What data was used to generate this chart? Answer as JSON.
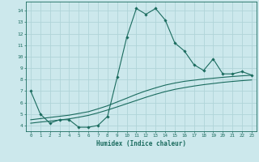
{
  "xlabel": "Humidex (Indice chaleur)",
  "bg_color": "#cce8ec",
  "line_color": "#1a6b5e",
  "grid_color": "#b0d4d8",
  "x_values": [
    0,
    1,
    2,
    3,
    4,
    5,
    6,
    7,
    8,
    9,
    10,
    11,
    12,
    13,
    14,
    15,
    16,
    17,
    18,
    19,
    20,
    21,
    22,
    23
  ],
  "line1_y": [
    7.0,
    5.0,
    4.2,
    4.5,
    4.5,
    3.85,
    3.85,
    4.0,
    4.8,
    8.2,
    11.7,
    14.2,
    13.7,
    14.2,
    13.2,
    11.2,
    10.5,
    9.3,
    8.8,
    9.8,
    8.5,
    8.5,
    8.7,
    8.4
  ],
  "line2_y": [
    4.5,
    4.6,
    4.7,
    4.8,
    4.9,
    5.05,
    5.2,
    5.45,
    5.72,
    6.05,
    6.38,
    6.72,
    7.02,
    7.28,
    7.52,
    7.7,
    7.85,
    7.95,
    8.05,
    8.12,
    8.2,
    8.27,
    8.33,
    8.38
  ],
  "line3_y": [
    4.2,
    4.3,
    4.38,
    4.48,
    4.58,
    4.72,
    4.88,
    5.1,
    5.35,
    5.62,
    5.9,
    6.18,
    6.46,
    6.72,
    6.95,
    7.15,
    7.3,
    7.44,
    7.56,
    7.66,
    7.76,
    7.84,
    7.91,
    7.97
  ],
  "xlim": [
    -0.5,
    23.5
  ],
  "ylim": [
    3.5,
    14.8
  ],
  "yticks": [
    4,
    5,
    6,
    7,
    8,
    9,
    10,
    11,
    12,
    13,
    14
  ],
  "xticks": [
    0,
    1,
    2,
    3,
    4,
    5,
    6,
    7,
    8,
    9,
    10,
    11,
    12,
    13,
    14,
    15,
    16,
    17,
    18,
    19,
    20,
    21,
    22,
    23
  ]
}
